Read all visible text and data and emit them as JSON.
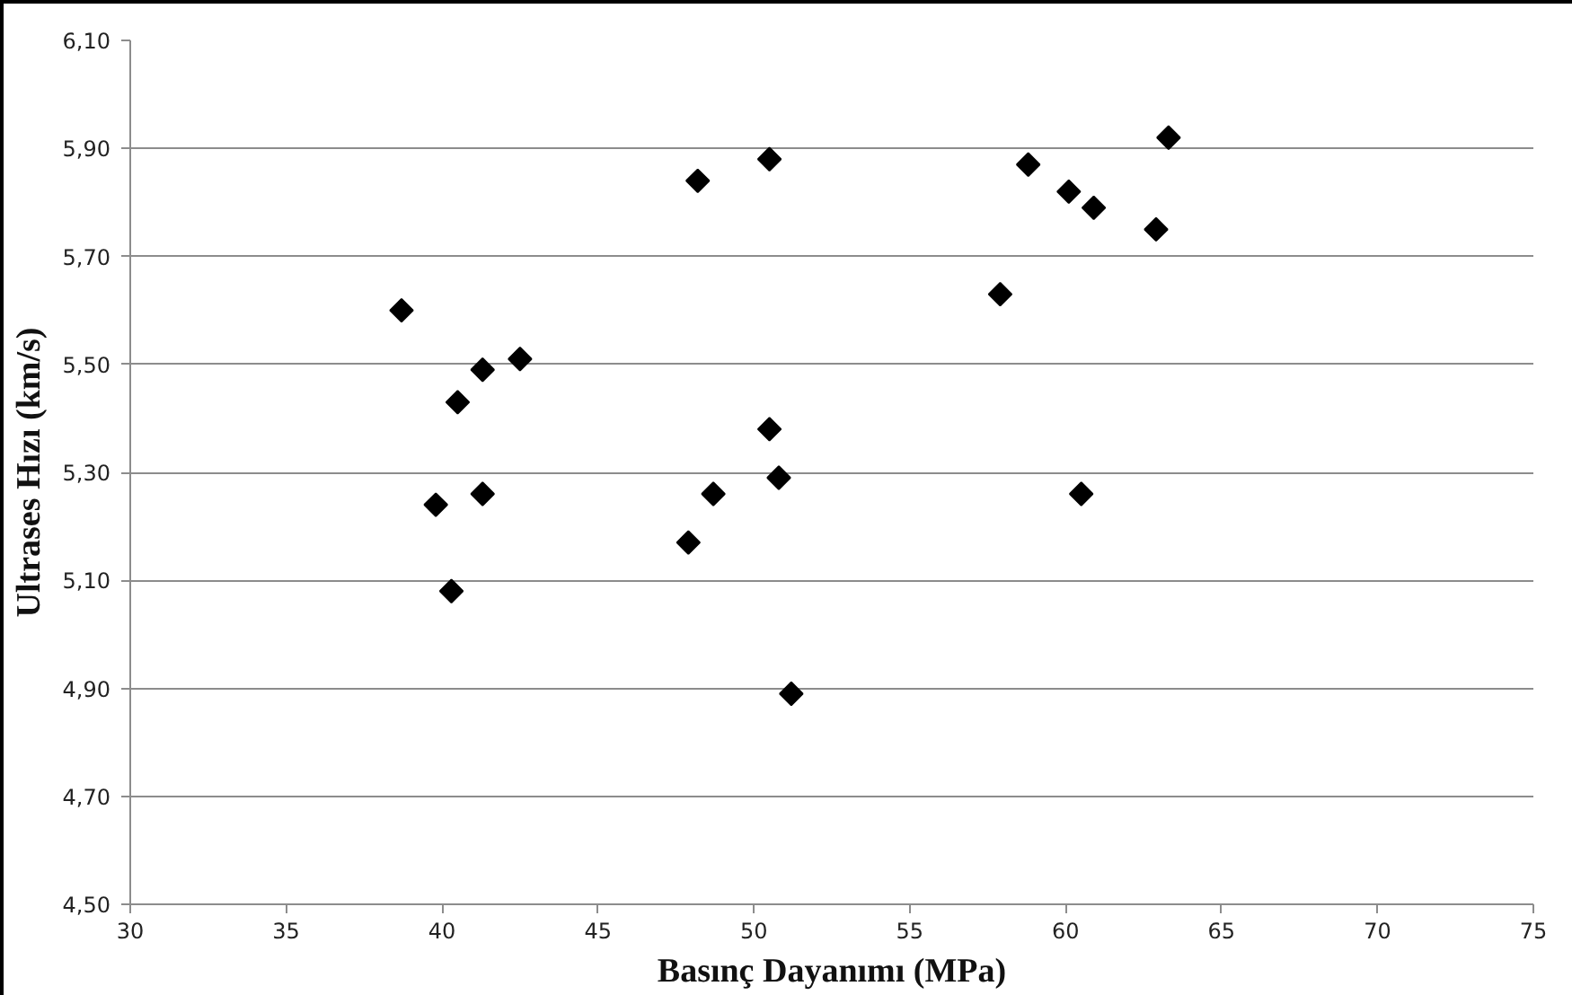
{
  "chart_data": {
    "type": "scatter",
    "xlabel": "Basınç Dayanımı (MPa)",
    "ylabel": "Ultrases Hızı (km/s)",
    "x": [
      38.7,
      40.5,
      41.3,
      42.5,
      39.8,
      41.3,
      40.3,
      48.2,
      50.5,
      50.5,
      50.8,
      48.7,
      47.9,
      51.2,
      57.9,
      58.8,
      60.1,
      60.9,
      62.9,
      63.3,
      60.5
    ],
    "series": [
      {
        "color": "#000000",
        "values": [
          5.6,
          5.43,
          5.49,
          5.51,
          5.24,
          5.26,
          5.08,
          5.84,
          5.88,
          5.38,
          5.29,
          5.26,
          5.17,
          4.89,
          5.63,
          5.87,
          5.82,
          5.79,
          5.75,
          5.92,
          5.26
        ]
      }
    ],
    "xlim": [
      30,
      75
    ],
    "xticks": [
      30,
      35,
      40,
      45,
      50,
      55,
      60,
      65,
      70,
      75
    ],
    "ylim": [
      4.5,
      6.1
    ],
    "yticks": [
      {
        "value": 4.5,
        "label": "4,50"
      },
      {
        "value": 4.7,
        "label": "4,70"
      },
      {
        "value": 4.9,
        "label": "4,90"
      },
      {
        "value": 5.1,
        "label": "5,10"
      },
      {
        "value": 5.3,
        "label": "5,30"
      },
      {
        "value": 5.5,
        "label": "5,50"
      },
      {
        "value": 5.7,
        "label": "5,70"
      },
      {
        "value": 5.9,
        "label": "5,90"
      },
      {
        "value": 6.1,
        "label": "6,10"
      }
    ],
    "grid": "y",
    "marker": "diamond"
  }
}
